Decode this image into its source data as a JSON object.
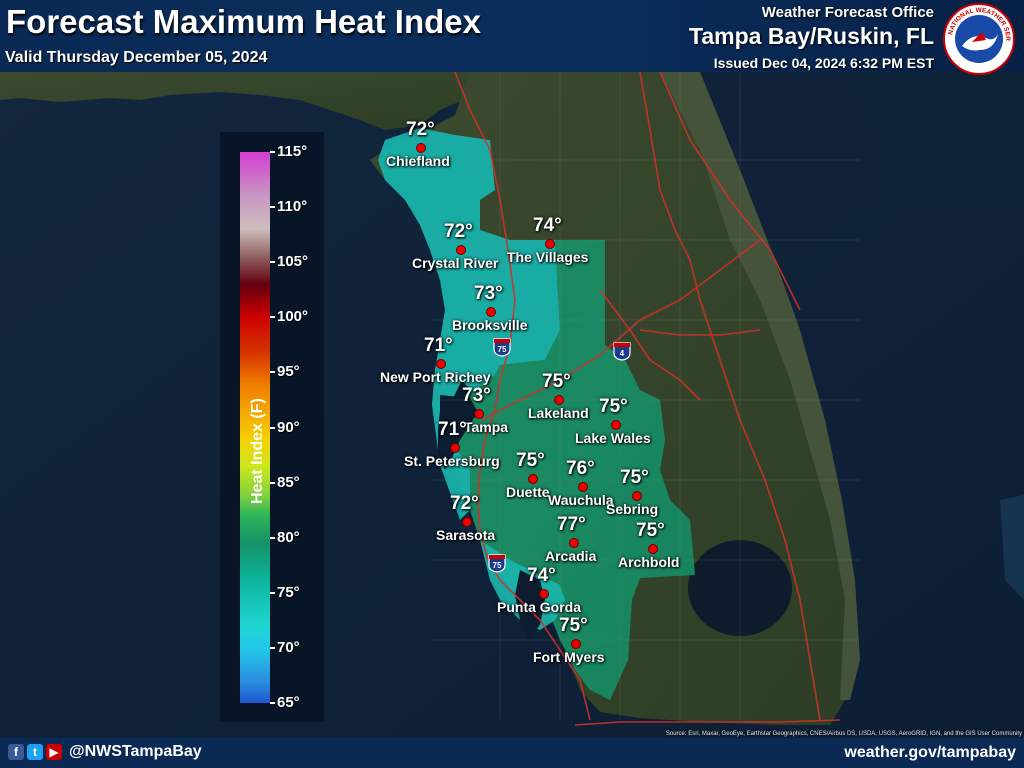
{
  "header": {
    "title": "Forecast Maximum Heat Index",
    "valid": "Valid Thursday December 05, 2024",
    "office_line1": "Weather Forecast Office",
    "office_line2": "Tampa Bay/Ruskin, FL",
    "issued": "Issued Dec 04, 2024 6:32 PM EST",
    "logo_text": "NATIONAL WEATHER SERVICE"
  },
  "legend": {
    "axis_label": "Heat Index (F)",
    "ticks": [
      "115°",
      "110°",
      "105°",
      "100°",
      "95°",
      "90°",
      "85°",
      "80°",
      "75°",
      "70°",
      "65°"
    ]
  },
  "cities": [
    {
      "name": "Chiefland",
      "value": "72°"
    },
    {
      "name": "Crystal River",
      "value": "72°"
    },
    {
      "name": "The Villages",
      "value": "74°"
    },
    {
      "name": "Brooksville",
      "value": "73°"
    },
    {
      "name": "New Port Richey",
      "value": "71°"
    },
    {
      "name": "Tampa",
      "value": "73°"
    },
    {
      "name": "Lakeland",
      "value": "75°"
    },
    {
      "name": "Lake Wales",
      "value": "75°"
    },
    {
      "name": "St. Petersburg",
      "value": "71°"
    },
    {
      "name": "Duette",
      "value": "75°"
    },
    {
      "name": "Wauchula",
      "value": "76°"
    },
    {
      "name": "Sebring",
      "value": "75°"
    },
    {
      "name": "Sarasota",
      "value": "72°"
    },
    {
      "name": "Arcadia",
      "value": "77°"
    },
    {
      "name": "Archbold",
      "value": "75°"
    },
    {
      "name": "Punta Gorda",
      "value": "74°"
    },
    {
      "name": "Fort Myers",
      "value": "75°"
    }
  ],
  "highways": [
    "75",
    "4",
    "75"
  ],
  "footer": {
    "handle": "@NWSTampaBay",
    "site": "weather.gov/tampabay",
    "source": "Source: Esri, Maxar, GeoEye, Earthstar Geographics, CNES/Airbus DS, USDA, USGS, AeroGRID, IGN, and the GIS User Community"
  },
  "colors": {
    "header": "#0a2a55",
    "marker": "#ee0000",
    "road": "#d0302a"
  }
}
